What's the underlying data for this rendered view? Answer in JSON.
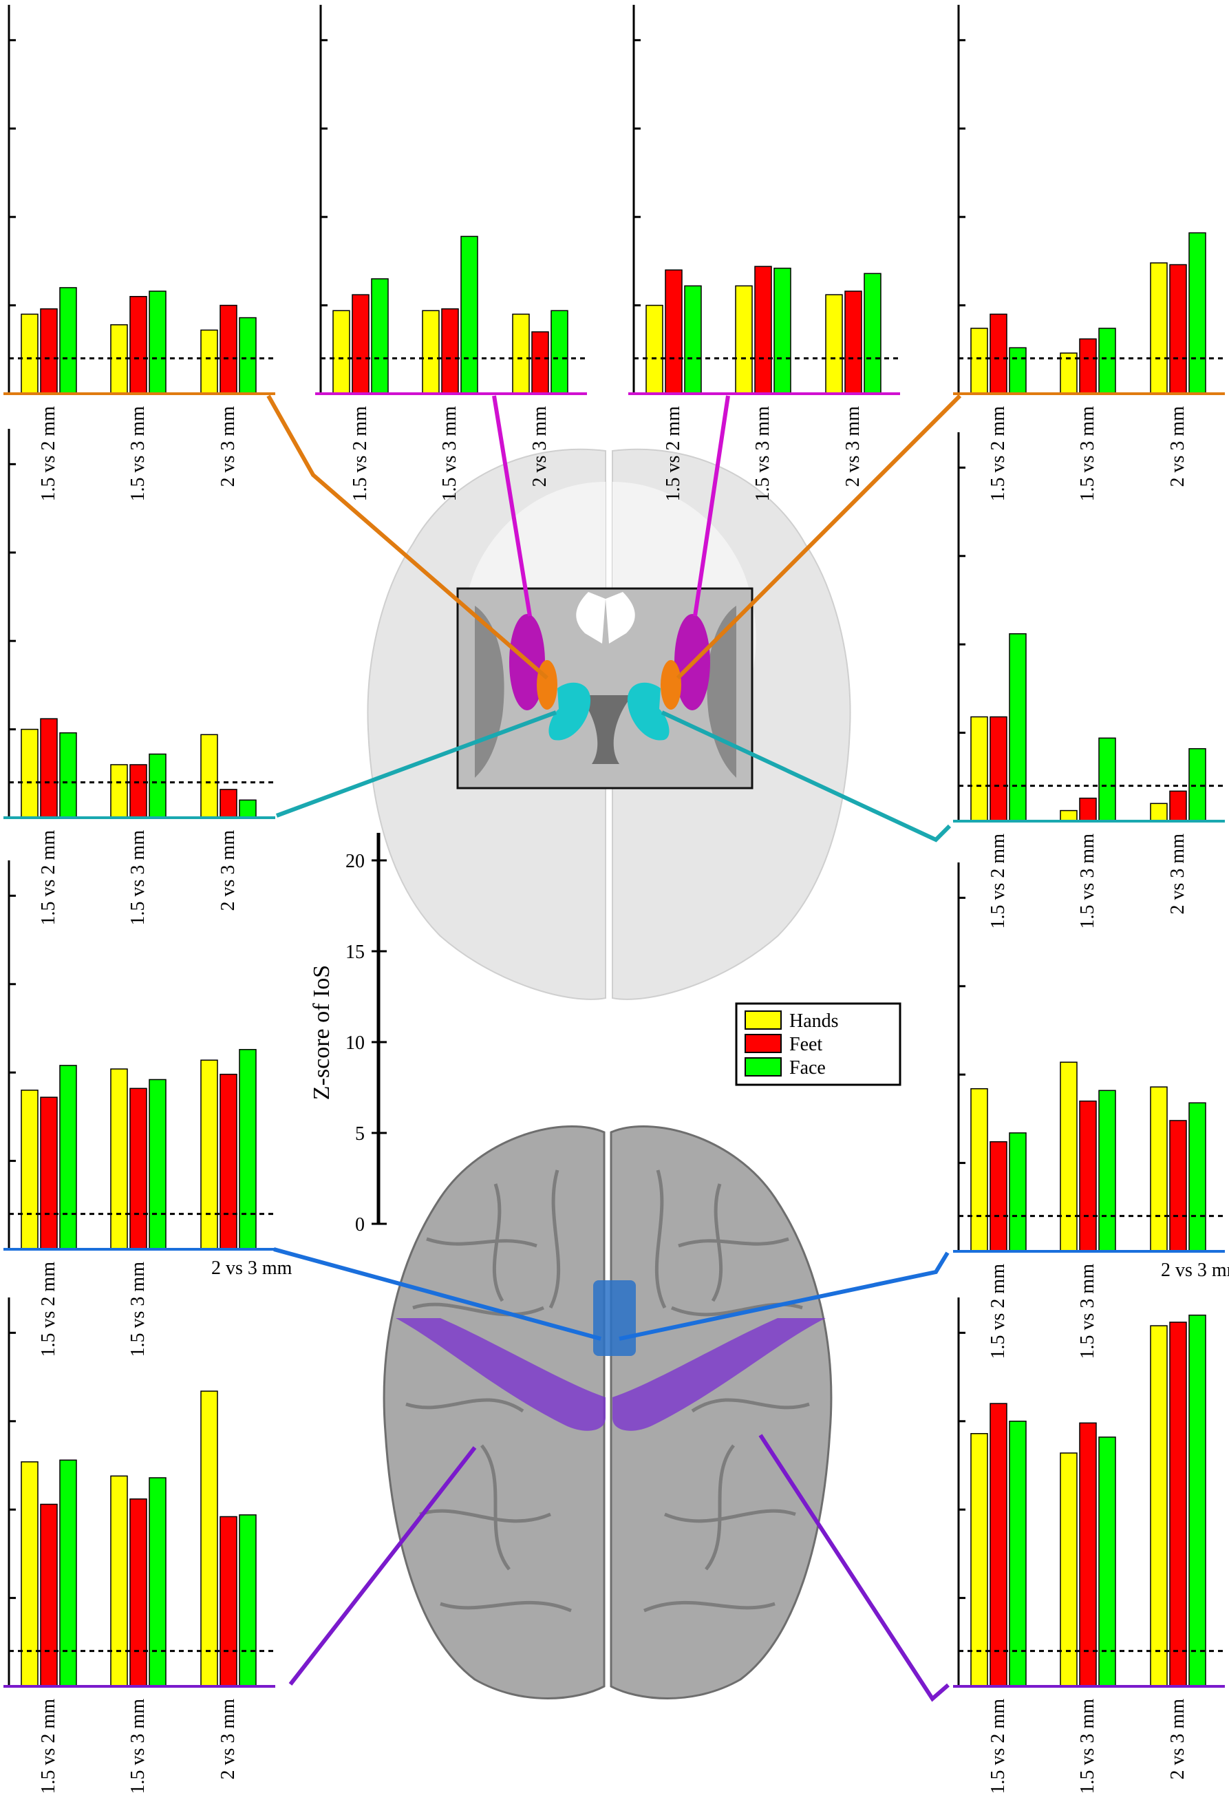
{
  "figure": {
    "colorbar": {
      "label": "Z-score of IoS",
      "ticks": [
        "0",
        "5",
        "10",
        "15",
        "20"
      ]
    },
    "legend": [
      "Hands",
      "Feet",
      "Face"
    ],
    "colors": {
      "Hands": "#ffff00",
      "Feet": "#ff0000",
      "Face": "#00ff00",
      "putamen_line": "#e07b10",
      "pallidum_line": "#d010d0",
      "caudate_line": "#1aa8b0",
      "sma_line": "#1a6fdc",
      "m1_line": "#7a1acc"
    }
  },
  "chart_data": [
    {
      "type": "bar",
      "categories": [
        "1.5 vs 2 mm",
        "1.5 vs 3 mm",
        "2 vs 3 mm"
      ],
      "ylim": [
        0,
        22
      ],
      "threshold": 2,
      "series": [
        {
          "name": "Hands",
          "values": [
            4.5,
            3.9,
            3.6
          ]
        },
        {
          "name": "Feet",
          "values": [
            4.8,
            5.5,
            5.0
          ]
        },
        {
          "name": "Face",
          "values": [
            6.0,
            5.8,
            4.3
          ]
        }
      ]
    },
    {
      "type": "bar",
      "categories": [
        "1.5 vs 2 mm",
        "1.5 vs 3 mm",
        "2 vs 3 mm"
      ],
      "ylim": [
        0,
        22
      ],
      "threshold": 2,
      "series": [
        {
          "name": "Hands",
          "values": [
            4.7,
            4.7,
            4.5
          ]
        },
        {
          "name": "Feet",
          "values": [
            5.6,
            4.8,
            3.5
          ]
        },
        {
          "name": "Face",
          "values": [
            6.5,
            8.9,
            4.7
          ]
        }
      ]
    },
    {
      "type": "bar",
      "categories": [
        "1.5 vs 2 mm",
        "1.5 vs 3 mm",
        "2 vs 3 mm"
      ],
      "ylim": [
        0,
        22
      ],
      "threshold": 2,
      "series": [
        {
          "name": "Hands",
          "values": [
            5.0,
            6.1,
            5.6
          ]
        },
        {
          "name": "Feet",
          "values": [
            7.0,
            7.2,
            5.8
          ]
        },
        {
          "name": "Face",
          "values": [
            6.1,
            7.1,
            6.8
          ]
        }
      ]
    },
    {
      "type": "bar",
      "categories": [
        "1.5 vs 2 mm",
        "1.5 vs 3 mm",
        "2 vs 3 mm"
      ],
      "ylim": [
        0,
        22
      ],
      "threshold": 2,
      "series": [
        {
          "name": "Hands",
          "values": [
            3.7,
            2.3,
            7.4
          ]
        },
        {
          "name": "Feet",
          "values": [
            4.5,
            3.1,
            7.3
          ]
        },
        {
          "name": "Face",
          "values": [
            2.6,
            3.7,
            9.1
          ]
        }
      ]
    },
    {
      "type": "bar",
      "categories": [
        "1.5 vs 2 mm",
        "1.5 vs 3 mm",
        "2 vs 3 mm"
      ],
      "ylim": [
        0,
        22
      ],
      "threshold": 2,
      "series": [
        {
          "name": "Hands",
          "values": [
            5.0,
            3.0,
            4.7
          ]
        },
        {
          "name": "Feet",
          "values": [
            5.6,
            3.0,
            1.6
          ]
        },
        {
          "name": "Face",
          "values": [
            4.8,
            3.6,
            1.0
          ]
        }
      ]
    },
    {
      "type": "bar",
      "categories": [
        "1.5 vs 2 mm",
        "1.5 vs 3 mm",
        "2 vs 3 mm"
      ],
      "ylim": [
        0,
        22
      ],
      "threshold": 2,
      "series": [
        {
          "name": "Hands",
          "values": [
            5.9,
            0.6,
            1.0
          ]
        },
        {
          "name": "Feet",
          "values": [
            5.9,
            1.3,
            1.7
          ]
        },
        {
          "name": "Face",
          "values": [
            10.6,
            4.7,
            4.1
          ]
        }
      ]
    },
    {
      "type": "bar",
      "categories": [
        "1.5 vs 2 mm",
        "1.5 vs 3 mm",
        "2 vs 3 mm"
      ],
      "ylim": [
        0,
        22
      ],
      "threshold": 2,
      "series": [
        {
          "name": "Hands",
          "values": [
            9.0,
            10.2,
            10.7
          ]
        },
        {
          "name": "Feet",
          "values": [
            8.6,
            9.1,
            9.9
          ]
        },
        {
          "name": "Face",
          "values": [
            10.4,
            9.6,
            11.3
          ]
        }
      ]
    },
    {
      "type": "bar",
      "categories": [
        "1.5 vs 2 mm",
        "1.5 vs 3 mm",
        "2 vs 3 mm"
      ],
      "ylim": [
        0,
        22
      ],
      "threshold": 2,
      "series": [
        {
          "name": "Hands",
          "values": [
            9.2,
            10.7,
            9.3
          ]
        },
        {
          "name": "Feet",
          "values": [
            6.2,
            8.5,
            7.4
          ]
        },
        {
          "name": "Face",
          "values": [
            6.7,
            9.1,
            8.4
          ]
        }
      ]
    },
    {
      "type": "bar",
      "categories": [
        "1.5 vs 2 mm",
        "1.5 vs 3 mm",
        "2 vs 3 mm"
      ],
      "ylim": [
        0,
        22
      ],
      "threshold": 2,
      "series": [
        {
          "name": "Hands",
          "values": [
            12.7,
            11.9,
            16.7
          ]
        },
        {
          "name": "Feet",
          "values": [
            10.3,
            10.6,
            9.6
          ]
        },
        {
          "name": "Face",
          "values": [
            12.8,
            11.8,
            9.7
          ]
        }
      ]
    },
    {
      "type": "bar",
      "categories": [
        "1.5 vs 2 mm",
        "1.5 vs 3 mm",
        "2 vs 3 mm"
      ],
      "ylim": [
        0,
        22
      ],
      "threshold": 2,
      "series": [
        {
          "name": "Hands",
          "values": [
            14.3,
            13.2,
            20.4
          ]
        },
        {
          "name": "Feet",
          "values": [
            16.0,
            14.9,
            20.6
          ]
        },
        {
          "name": "Face",
          "values": [
            15.0,
            14.1,
            21.0
          ]
        }
      ]
    }
  ]
}
